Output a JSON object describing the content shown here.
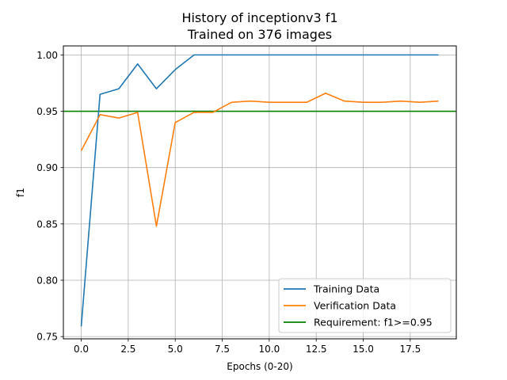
{
  "chart_data": {
    "type": "line",
    "title_line1": "History of inceptionv3 f1",
    "title_line2": "Trained on 376 images",
    "xlabel": "Epochs (0-20)",
    "ylabel": "f1",
    "xlim": [
      -0.95,
      19.95
    ],
    "ylim": [
      0.748,
      1.008
    ],
    "grid": true,
    "legend_position": "lower-right",
    "x_ticks": [
      0.0,
      2.5,
      5.0,
      7.5,
      10.0,
      12.5,
      15.0,
      17.5
    ],
    "x_tick_labels": [
      "0.0",
      "2.5",
      "5.0",
      "7.5",
      "10.0",
      "12.5",
      "15.0",
      "17.5"
    ],
    "y_ticks": [
      0.75,
      0.8,
      0.85,
      0.9,
      0.95,
      1.0
    ],
    "y_tick_labels": [
      "0.75",
      "0.80",
      "0.85",
      "0.90",
      "0.95",
      "1.00"
    ],
    "x": [
      0,
      1,
      2,
      3,
      4,
      5,
      6,
      7,
      8,
      9,
      10,
      11,
      12,
      13,
      14,
      15,
      16,
      17,
      18,
      19
    ],
    "series": [
      {
        "name": "Training Data",
        "color": "#1f77b4",
        "values": [
          0.759,
          0.965,
          0.97,
          0.992,
          0.97,
          0.987,
          1.0,
          1.0,
          1.0,
          1.0,
          1.0,
          1.0,
          1.0,
          1.0,
          1.0,
          1.0,
          1.0,
          1.0,
          1.0,
          1.0
        ]
      },
      {
        "name": "Verification Data",
        "color": "#ff7f0e",
        "values": [
          0.915,
          0.947,
          0.944,
          0.949,
          0.848,
          0.94,
          0.949,
          0.949,
          0.958,
          0.959,
          0.958,
          0.958,
          0.958,
          0.966,
          0.959,
          0.958,
          0.958,
          0.959,
          0.958,
          0.959
        ]
      }
    ],
    "reference_line": {
      "name": "Requirement: f1>=0.95",
      "color": "#008000",
      "y": 0.95
    }
  }
}
